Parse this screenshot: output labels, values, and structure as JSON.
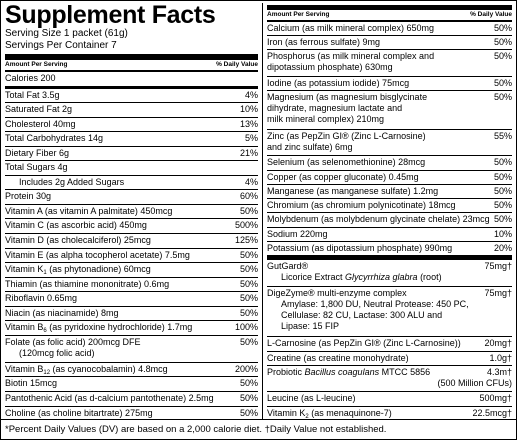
{
  "header": {
    "title": "Supplement Facts",
    "serving_size": "Serving Size 1 packet (61g)",
    "servings": "Servings Per Container 7"
  },
  "left": {
    "amount_header": "Amount Per Serving",
    "dv_header": "% Daily Value",
    "rows": [
      {
        "lines": [
          "Calories 200"
        ]
      },
      {
        "lines": [
          "Total Fat 3.5g"
        ],
        "dv": "4%"
      },
      {
        "lines": [
          "Saturated Fat 2g"
        ],
        "dv": "10%"
      },
      {
        "lines": [
          "Cholesterol 40mg"
        ],
        "dv": "13%"
      },
      {
        "lines": [
          "Total Carbohydrates 14g"
        ],
        "dv": "5%"
      },
      {
        "lines": [
          "Dietary Fiber 6g"
        ],
        "dv": "21%"
      },
      {
        "lines": [
          "Total Sugars 4g"
        ]
      },
      {
        "lines": [
          "Includes 2g Added Sugars"
        ],
        "dv": "4%",
        "indent": true
      },
      {
        "lines": [
          "Protein 30g"
        ],
        "dv": "60%"
      },
      {
        "lines": [
          "Vitamin A (as vitamin A palmitate) 450mcg"
        ],
        "dv": "50%"
      },
      {
        "lines": [
          "Vitamin C (as ascorbic acid) 450mg"
        ],
        "dv": "500%"
      },
      {
        "lines": [
          "Vitamin D (as cholecalciferol) 25mcg"
        ],
        "dv": "125%"
      },
      {
        "lines": [
          "Vitamin E (as alpha tocopherol acetate) 7.5mg"
        ],
        "dv": "50%"
      },
      {
        "lines": [
          [
            "Vitamin K",
            {
              "text": "1",
              "sub": true
            },
            " (as phytonadione) 60mcg"
          ]
        ],
        "dv": "50%"
      },
      {
        "lines": [
          "Thiamin (as thiamine mononitrate) 0.6mg"
        ],
        "dv": "50%"
      },
      {
        "lines": [
          "Riboflavin 0.65mg"
        ],
        "dv": "50%"
      },
      {
        "lines": [
          "Niacin (as niacinamide) 8mg"
        ],
        "dv": "50%"
      },
      {
        "lines": [
          [
            "Vitamin B",
            {
              "text": "6",
              "sub": true
            },
            " (as pyridoxine hydrochloride) 1.7mg"
          ]
        ],
        "dv": "100%"
      },
      {
        "lines": [
          "Folate (as folic acid) 200mcg DFE",
          "(120mcg folic acid)"
        ],
        "dv": "50%",
        "wrap_indent": true
      },
      {
        "lines": [
          [
            "Vitamin B",
            {
              "text": "12",
              "sub": true
            },
            " (as cyanocobalamin) 4.8mcg"
          ]
        ],
        "dv": "200%"
      },
      {
        "lines": [
          "Biotin 15mcg"
        ],
        "dv": "50%"
      },
      {
        "lines": [
          "Pantothenic Acid (as d-calcium pantothenate) 2.5mg"
        ],
        "dv": "50%"
      },
      {
        "lines": [
          "Choline (as choline bitartrate) 275mg"
        ],
        "dv": "50%"
      }
    ]
  },
  "right": {
    "amount_header": "Amount Per Serving",
    "dv_header": "% Daily Value",
    "rows": [
      {
        "lines": [
          "Calcium (as milk mineral complex) 650mg"
        ],
        "dv": "50%"
      },
      {
        "lines": [
          "Iron (as ferrous sulfate) 9mg"
        ],
        "dv": "50%"
      },
      {
        "lines": [
          "Phosphorus (as milk mineral complex and",
          "dipotassium phosphate) 630mg"
        ],
        "dv": "50%"
      },
      {
        "lines": [
          "Iodine (as potassium iodide) 75mcg"
        ],
        "dv": "50%"
      },
      {
        "lines": [
          "Magnesium (as magnesium bisglycinate",
          "dihydrate, magnesium lactate and",
          "milk mineral complex) 210mg"
        ],
        "dv": "50%"
      },
      {
        "lines": [
          "Zinc (as PepZin GI® (Zinc L-Carnosine)",
          "and zinc sulfate) 6mg"
        ],
        "dv": "55%"
      },
      {
        "lines": [
          "Selenium (as selenomethionine) 28mcg"
        ],
        "dv": "50%"
      },
      {
        "lines": [
          "Copper (as copper gluconate) 0.45mg"
        ],
        "dv": "50%"
      },
      {
        "lines": [
          "Manganese (as manganese sulfate) 1.2mg"
        ],
        "dv": "50%"
      },
      {
        "lines": [
          "Chromium (as chromium polynicotinate) 18mcg"
        ],
        "dv": "50%"
      },
      {
        "lines": [
          "Molybdenum (as molybdenum glycinate chelate) 23mcg"
        ],
        "dv": "50%"
      },
      {
        "lines": [
          "Sodium 220mg"
        ],
        "dv": "10%"
      },
      {
        "lines": [
          "Potassium (as dipotassium phosphate) 990mg"
        ],
        "dv": "20%"
      }
    ],
    "other_rows": [
      {
        "lines": [
          "GutGard®",
          [
            "Licorice Extract ",
            {
              "text": "Glycyrrhiza glabra",
              "italic": true
            },
            " (root)"
          ]
        ],
        "dv": "75mg†",
        "wrap_indent": true
      },
      {
        "lines": [
          "DigeZyme® multi-enzyme complex",
          "Amylase: 1,800 DU, Neutral Protease: 450 PC,",
          "Cellulase: 82 CU, Lactase: 300 ALU and",
          "Lipase: 15 FIP"
        ],
        "dv": "75mg†",
        "wrap_indent": true
      },
      {
        "lines": [
          "L-Carnosine (as PepZin GI® (Zinc L-Carnosine))"
        ],
        "dv": "20mg†"
      },
      {
        "lines": [
          "Creatine (as creatine monohydrate)"
        ],
        "dv": "1.0g†"
      },
      {
        "lines": [
          [
            "Probiotic ",
            {
              "text": "Bacillus coagulans",
              "italic": true
            },
            " MTCC 5856"
          ]
        ],
        "dv": [
          "4.3m†",
          "(500 Million CFUs)"
        ]
      },
      {
        "lines": [
          "Leucine (as L-leucine)"
        ],
        "dv": "500mg†"
      },
      {
        "lines": [
          [
            "Vitamin K",
            {
              "text": "2",
              "sub": true
            },
            " (as menaquinone-7)"
          ]
        ],
        "dv": "22.5mcg†"
      }
    ]
  },
  "footnote": "*Percent Daily Values (DV) are based on a 2,000 calorie diet. †Daily Value not established."
}
